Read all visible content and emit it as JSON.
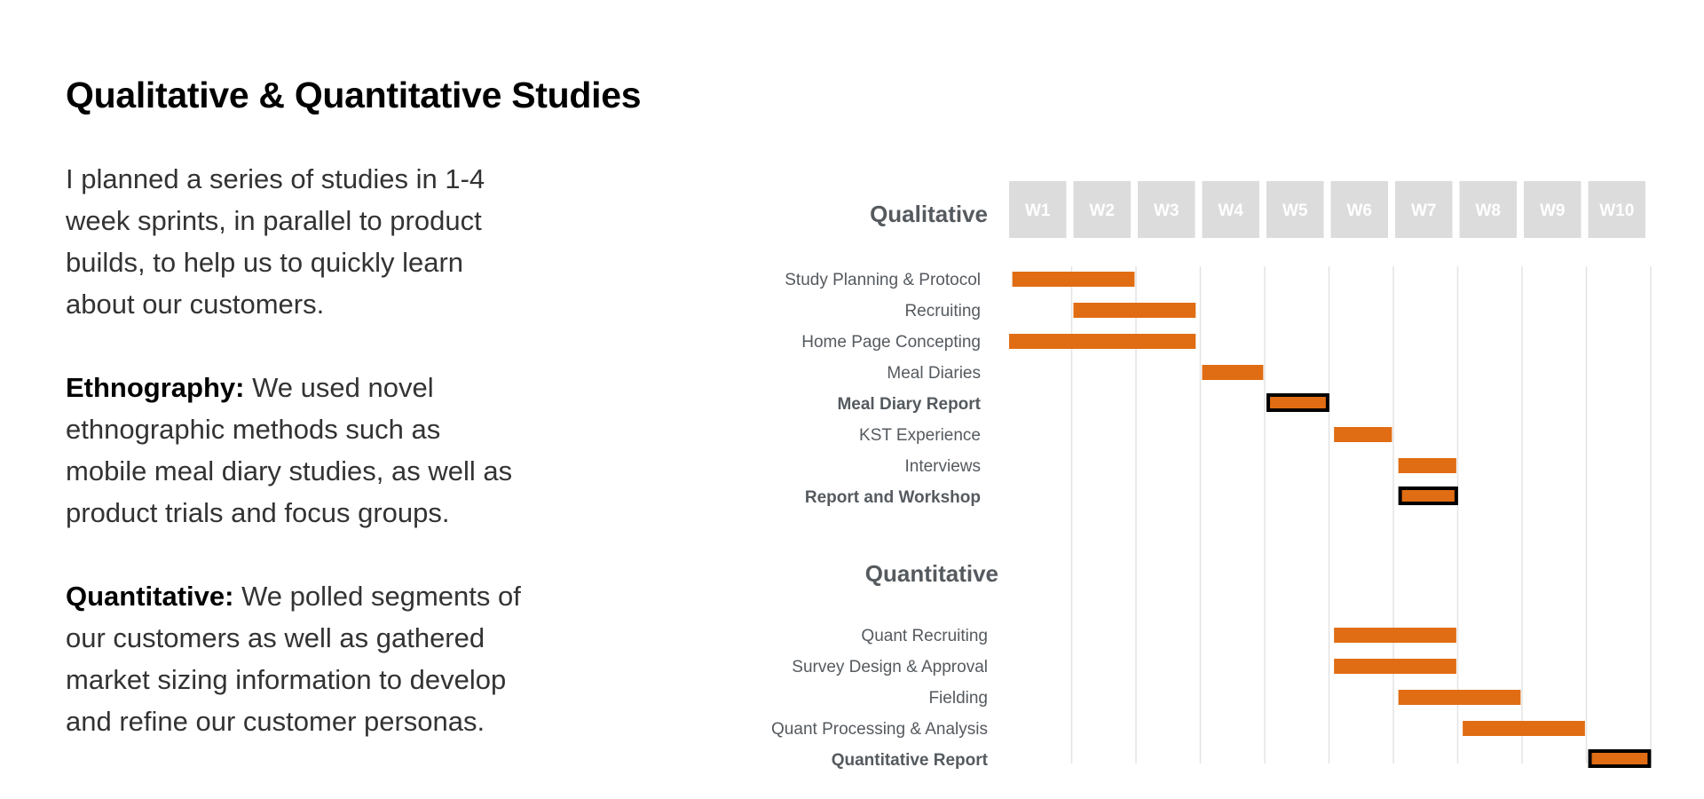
{
  "page": {
    "title": "Qualitative & Quantitative Studies",
    "intro": "I planned a series of studies in 1-4 week sprints, in parallel to product builds, to help us to quickly learn about our customers.",
    "ethnography_heading": "Ethnography:",
    "ethnography_text": " We used novel ethnographic methods such as mobile meal diary studies, as well as product trials and focus groups.",
    "quantitative_heading": "Quantitative:",
    "quantitative_text": " We polled segments of our customers as well as gathered market sizing information to develop and refine our customer personas."
  },
  "chart_data": {
    "type": "gantt",
    "weeks": [
      "W1",
      "W2",
      "W3",
      "W4",
      "W5",
      "W6",
      "W7",
      "W8",
      "W9",
      "W10"
    ],
    "sections": [
      {
        "name": "Qualitative",
        "tasks": [
          {
            "label": "Study Planning & Protocol",
            "start": 1.05,
            "end": 2.95,
            "milestone": false
          },
          {
            "label": "Recruiting",
            "start": 2.0,
            "end": 3.9,
            "milestone": false
          },
          {
            "label": "Home Page Concepting",
            "start": 1.0,
            "end": 3.9,
            "milestone": false
          },
          {
            "label": "Meal Diaries",
            "start": 4.0,
            "end": 4.95,
            "milestone": false
          },
          {
            "label": "Meal Diary Report",
            "start": 5.0,
            "end": 5.95,
            "milestone": true
          },
          {
            "label": "KST Experience",
            "start": 6.05,
            "end": 6.95,
            "milestone": false
          },
          {
            "label": "Interviews",
            "start": 7.05,
            "end": 7.95,
            "milestone": false
          },
          {
            "label": "Report and Workshop",
            "start": 7.05,
            "end": 7.95,
            "milestone": true
          }
        ]
      },
      {
        "name": "Quantitative",
        "tasks": [
          {
            "label": "Quant Recruiting",
            "start": 6.05,
            "end": 7.95,
            "milestone": false
          },
          {
            "label": "Survey Design & Approval",
            "start": 6.05,
            "end": 7.95,
            "milestone": false
          },
          {
            "label": "Fielding",
            "start": 7.05,
            "end": 8.95,
            "milestone": false
          },
          {
            "label": "Quant Processing & Analysis",
            "start": 8.05,
            "end": 9.95,
            "milestone": false
          },
          {
            "label": "Quantitative Report",
            "start": 10.0,
            "end": 10.95,
            "milestone": true
          }
        ]
      }
    ],
    "colors": {
      "bar": "#e06d13",
      "milestone_border": "#000000",
      "week_header": "#dcdcdd",
      "grid": "#e4e4e4",
      "label": "#555a5f"
    }
  }
}
